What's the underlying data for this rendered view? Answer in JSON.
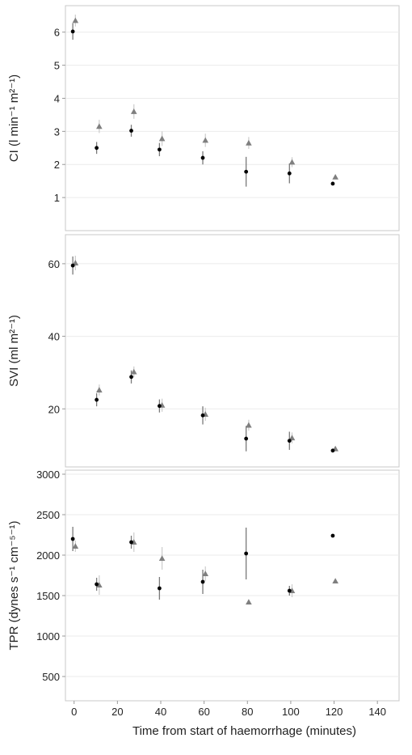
{
  "chart_data": [
    {
      "type": "scatter",
      "ylabel": "CI (l min⁻¹ m²⁻¹)",
      "ylim": [
        0,
        6.8
      ],
      "yticks": [
        1,
        2,
        3,
        4,
        5,
        6
      ],
      "grid": true,
      "series": [
        {
          "marker": "triangle",
          "color": "#7f7f7f",
          "points": [
            {
              "x": 0,
              "y": 6.35,
              "err": 0.18
            },
            {
              "x": 11,
              "y": 3.15,
              "err": 0.2
            },
            {
              "x": 27,
              "y": 3.6,
              "err": 0.22
            },
            {
              "x": 40,
              "y": 2.78,
              "err": 0.22
            },
            {
              "x": 60,
              "y": 2.73,
              "err": 0.2
            },
            {
              "x": 80,
              "y": 2.65,
              "err": 0.18
            },
            {
              "x": 100,
              "y": 2.07,
              "err": 0.15
            },
            {
              "x": 120,
              "y": 1.62,
              "err": 0.05
            }
          ]
        },
        {
          "marker": "circle",
          "color": "#000000",
          "points": [
            {
              "x": 0,
              "y": 6.02,
              "err": 0.25
            },
            {
              "x": 11,
              "y": 2.5,
              "err": 0.18
            },
            {
              "x": 27,
              "y": 3.02,
              "err": 0.18
            },
            {
              "x": 40,
              "y": 2.45,
              "err": 0.2
            },
            {
              "x": 60,
              "y": 2.2,
              "err": 0.2
            },
            {
              "x": 80,
              "y": 1.78,
              "err": 0.45
            },
            {
              "x": 100,
              "y": 1.73,
              "err": 0.3
            },
            {
              "x": 120,
              "y": 1.42,
              "err": 0.03
            }
          ]
        }
      ]
    },
    {
      "type": "scatter",
      "ylabel": "SVI (ml m²⁻¹)",
      "ylim": [
        4,
        68
      ],
      "yticks": [
        20,
        40,
        60
      ],
      "grid": true,
      "series": [
        {
          "marker": "triangle",
          "color": "#7f7f7f",
          "points": [
            {
              "x": 0,
              "y": 60.2,
              "err": 2.0
            },
            {
              "x": 11,
              "y": 25.2,
              "err": 1.5
            },
            {
              "x": 27,
              "y": 30.2,
              "err": 1.5
            },
            {
              "x": 40,
              "y": 21.0,
              "err": 1.8
            },
            {
              "x": 60,
              "y": 18.5,
              "err": 1.8
            },
            {
              "x": 80,
              "y": 15.5,
              "err": 1.5
            },
            {
              "x": 100,
              "y": 12.0,
              "err": 1.5
            },
            {
              "x": 120,
              "y": 9.0,
              "err": 0.6
            }
          ]
        },
        {
          "marker": "circle",
          "color": "#000000",
          "points": [
            {
              "x": 0,
              "y": 59.5,
              "err": 2.5
            },
            {
              "x": 11,
              "y": 22.5,
              "err": 1.8
            },
            {
              "x": 27,
              "y": 28.8,
              "err": 1.8
            },
            {
              "x": 40,
              "y": 20.8,
              "err": 1.8
            },
            {
              "x": 60,
              "y": 18.2,
              "err": 2.5
            },
            {
              "x": 80,
              "y": 11.8,
              "err": 3.5
            },
            {
              "x": 100,
              "y": 11.2,
              "err": 2.5
            },
            {
              "x": 120,
              "y": 8.5,
              "err": 0.5
            }
          ]
        }
      ]
    },
    {
      "type": "scatter",
      "ylabel": "TPR (dynes s⁻¹ cm⁻⁵⁻¹)",
      "ylim": [
        200,
        3050
      ],
      "yticks": [
        500,
        1000,
        1500,
        2000,
        2500,
        3000
      ],
      "grid": true,
      "xlabel": "Time from start of haemorrhage (minutes)",
      "xticks": [
        0,
        20,
        40,
        60,
        80,
        100,
        120,
        140
      ],
      "series": [
        {
          "marker": "triangle",
          "color": "#7f7f7f",
          "points": [
            {
              "x": 0,
              "y": 2110,
              "err": 70
            },
            {
              "x": 11,
              "y": 1630,
              "err": 120
            },
            {
              "x": 27,
              "y": 2160,
              "err": 120
            },
            {
              "x": 40,
              "y": 1960,
              "err": 140
            },
            {
              "x": 60,
              "y": 1770,
              "err": 90
            },
            {
              "x": 80,
              "y": 1420,
              "err": 30
            },
            {
              "x": 100,
              "y": 1560,
              "err": 80
            },
            {
              "x": 120,
              "y": 1680,
              "err": 20
            }
          ]
        },
        {
          "marker": "circle",
          "color": "#000000",
          "points": [
            {
              "x": 0,
              "y": 2200,
              "err": 150
            },
            {
              "x": 11,
              "y": 1640,
              "err": 80
            },
            {
              "x": 27,
              "y": 2160,
              "err": 80
            },
            {
              "x": 40,
              "y": 1590,
              "err": 140
            },
            {
              "x": 60,
              "y": 1670,
              "err": 150
            },
            {
              "x": 80,
              "y": 2020,
              "err": 320
            },
            {
              "x": 100,
              "y": 1560,
              "err": 60
            },
            {
              "x": 120,
              "y": 2240,
              "err": 15
            }
          ]
        }
      ]
    }
  ]
}
